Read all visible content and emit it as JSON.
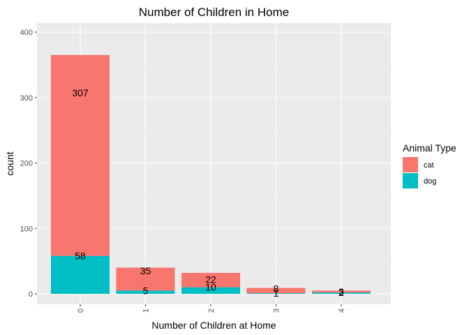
{
  "chart_data": {
    "type": "bar",
    "stacked": true,
    "title": "Number of Children in Home",
    "xlabel": "Number of Children at Home",
    "ylabel": "count",
    "categories": [
      "0",
      "1",
      "2",
      "3",
      "4"
    ],
    "series": [
      {
        "name": "cat",
        "color": "#F8766D",
        "values": [
          307,
          35,
          22,
          8,
          3
        ]
      },
      {
        "name": "dog",
        "color": "#00BFC4",
        "values": [
          58,
          5,
          10,
          1,
          2
        ]
      }
    ],
    "ylim": [
      0,
      420
    ],
    "yticks": [
      0,
      100,
      200,
      300,
      400
    ],
    "ytick_labels": [
      "0",
      "100",
      "200",
      "300",
      "400"
    ],
    "grid": true,
    "panel_background": "#EBEBEB",
    "legend": {
      "title": "Animal Type",
      "position": "right"
    }
  }
}
